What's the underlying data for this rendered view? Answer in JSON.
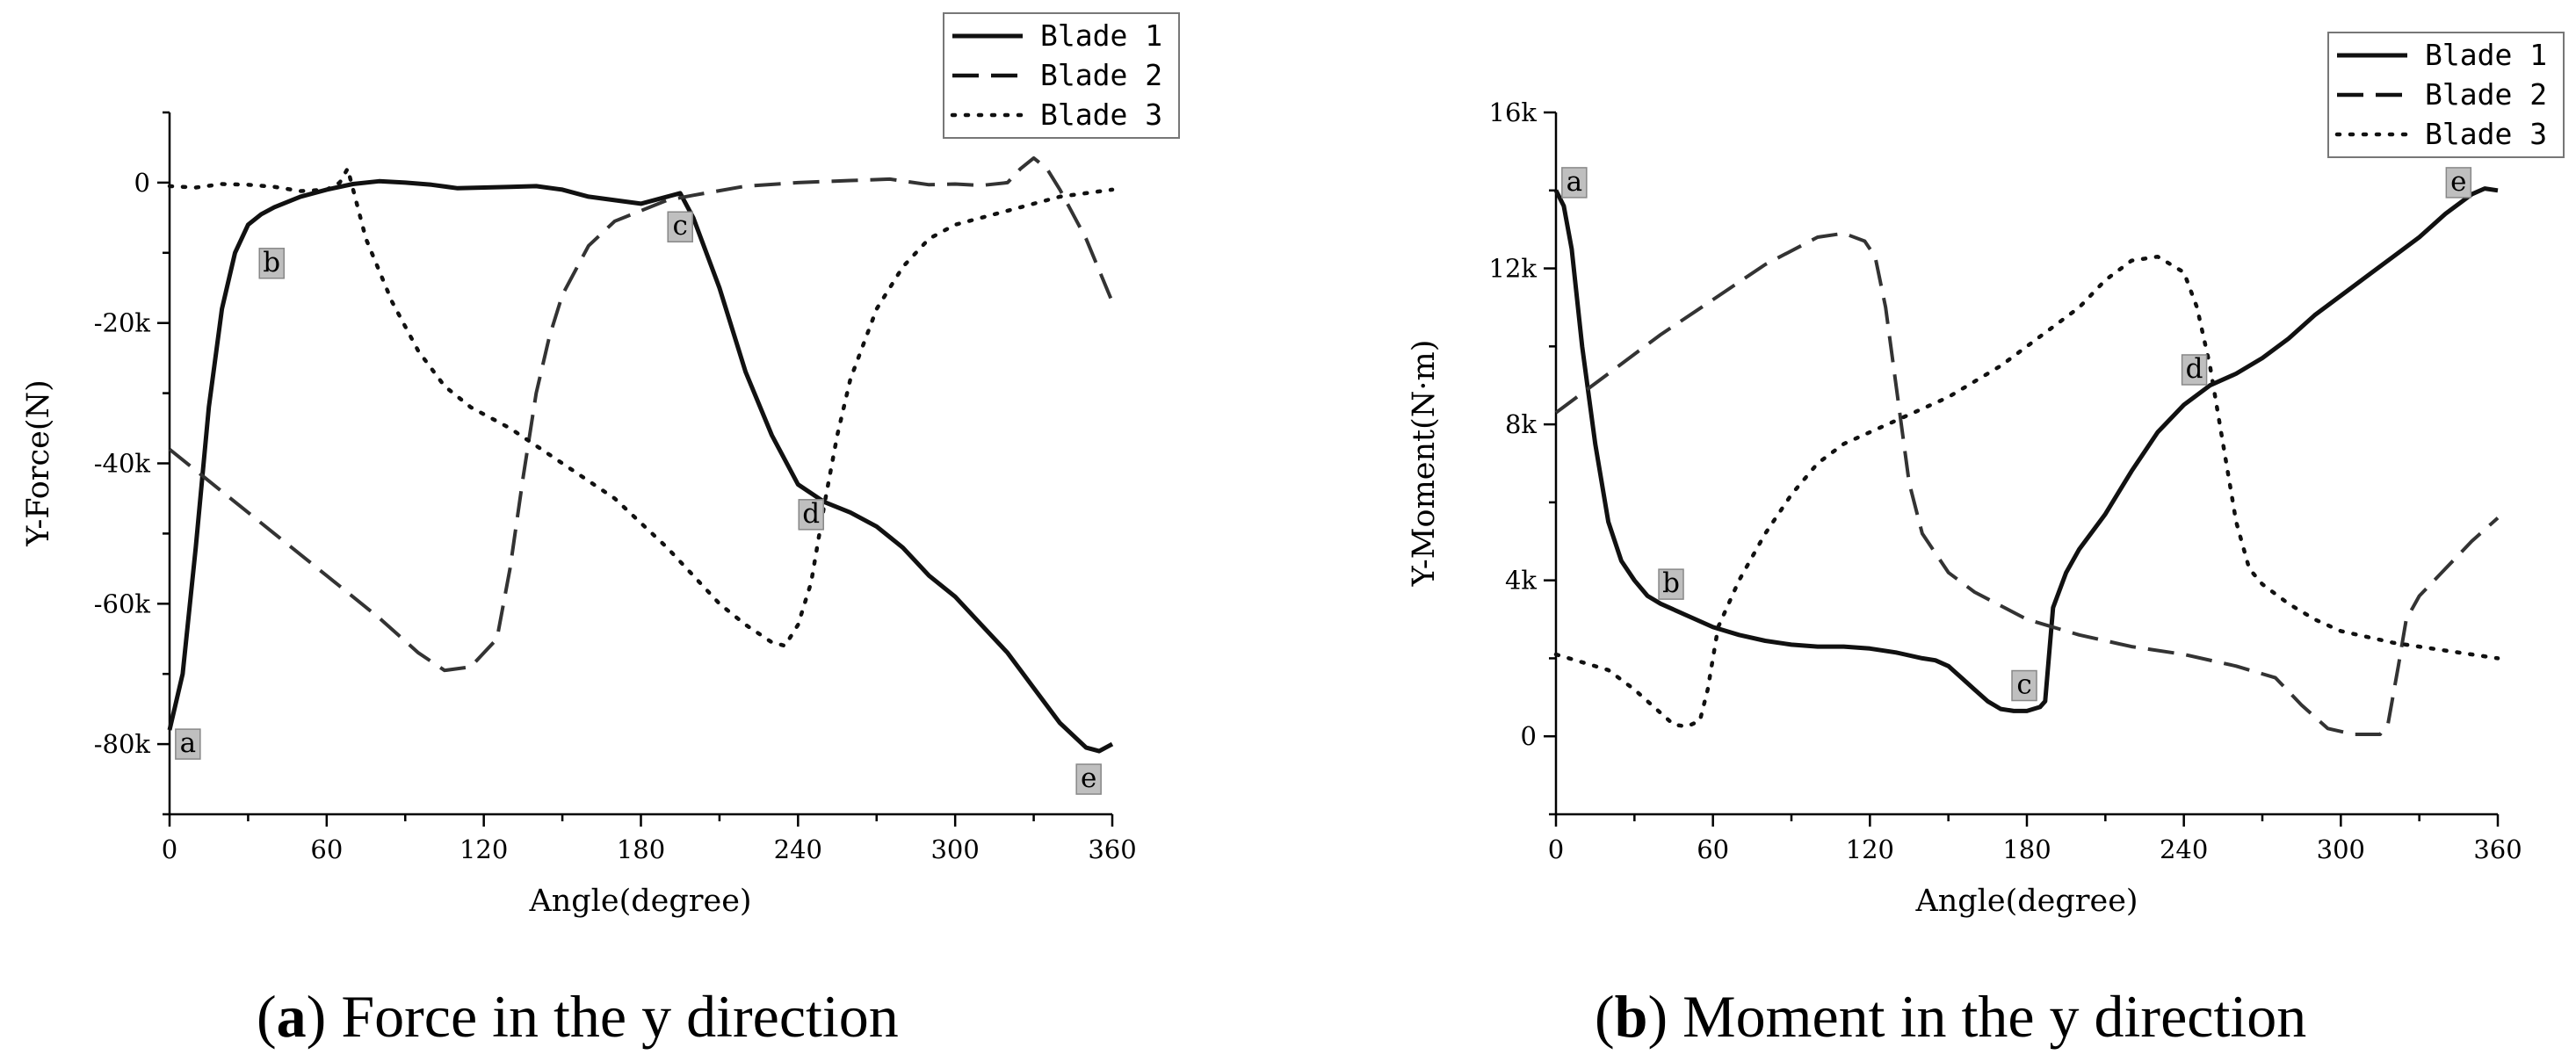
{
  "chart_data": [
    {
      "type": "line",
      "id": "a",
      "xlabel": "Angle(degree)",
      "ylabel": "Y-Force(N)",
      "xlim": [
        0,
        360
      ],
      "ylim": [
        -90000,
        10000
      ],
      "xticks": [
        0,
        60,
        120,
        180,
        240,
        300,
        360
      ],
      "xtick_labels": [
        "0",
        "60",
        "120",
        "180",
        "240",
        "300",
        "360"
      ],
      "yticks": [
        -80000,
        -60000,
        -40000,
        -20000,
        0
      ],
      "ytick_labels": [
        "-80k",
        "-60k",
        "-40k",
        "-20k",
        "0"
      ],
      "legend_position": "top-right",
      "caption_label": "a",
      "caption_text": "Force in the y direction",
      "series": [
        {
          "name": "Blade 1",
          "style": "solid",
          "x": [
            0,
            5,
            10,
            15,
            20,
            25,
            30,
            35,
            40,
            50,
            60,
            70,
            80,
            90,
            100,
            110,
            120,
            130,
            140,
            150,
            160,
            170,
            180,
            190,
            195,
            200,
            210,
            220,
            230,
            240,
            250,
            260,
            270,
            280,
            290,
            300,
            310,
            320,
            330,
            340,
            350,
            355,
            360
          ],
          "y": [
            -78000,
            -70000,
            -52000,
            -32000,
            -18000,
            -10000,
            -6000,
            -4500,
            -3500,
            -2000,
            -1000,
            -200,
            200,
            0,
            -300,
            -800,
            -700,
            -600,
            -500,
            -1000,
            -2000,
            -2500,
            -3000,
            -2000,
            -1500,
            -5000,
            -15000,
            -27000,
            -36000,
            -43000,
            -45500,
            -47000,
            -49000,
            -52000,
            -56000,
            -59000,
            -63000,
            -67000,
            -72000,
            -77000,
            -80500,
            -81000,
            -80000
          ]
        },
        {
          "name": "Blade 2",
          "style": "dashed",
          "x": [
            0,
            20,
            40,
            60,
            80,
            95,
            105,
            115,
            125,
            130,
            135,
            140,
            145,
            150,
            160,
            170,
            180,
            190,
            200,
            220,
            240,
            260,
            275,
            290,
            300,
            310,
            320,
            325,
            330,
            335,
            340,
            350,
            360
          ],
          "y": [
            -38000,
            -44000,
            -50000,
            -56000,
            -62000,
            -67000,
            -69500,
            -69000,
            -65000,
            -55000,
            -42000,
            -30000,
            -22000,
            -16000,
            -9000,
            -5500,
            -4000,
            -2500,
            -1800,
            -500,
            0,
            300,
            500,
            -300,
            -200,
            -400,
            0,
            2000,
            3500,
            2000,
            -1000,
            -8000,
            -17000
          ]
        },
        {
          "name": "Blade 3",
          "style": "dotted",
          "x": [
            0,
            10,
            20,
            30,
            40,
            50,
            60,
            65,
            68,
            75,
            85,
            95,
            105,
            115,
            130,
            150,
            170,
            190,
            200,
            210,
            220,
            230,
            235,
            240,
            245,
            250,
            255,
            260,
            270,
            280,
            290,
            300,
            320,
            340,
            360
          ],
          "y": [
            -500,
            -700,
            -200,
            -300,
            -600,
            -1200,
            -1000,
            0,
            2000,
            -8000,
            -17000,
            -24000,
            -29000,
            -32000,
            -35000,
            -40000,
            -45000,
            -52000,
            -56000,
            -60000,
            -63000,
            -65500,
            -66000,
            -63000,
            -57000,
            -46000,
            -36000,
            -28000,
            -18000,
            -12000,
            -8000,
            -6000,
            -4000,
            -2000,
            -1000
          ]
        }
      ],
      "annotations": [
        {
          "label": "a",
          "x": 7,
          "y": -80000
        },
        {
          "label": "b",
          "x": 39,
          "y": -11500
        },
        {
          "label": "c",
          "x": 195,
          "y": -6300
        },
        {
          "label": "d",
          "x": 245,
          "y": -47300
        },
        {
          "label": "e",
          "x": 351,
          "y": -85000
        }
      ]
    },
    {
      "type": "line",
      "id": "b",
      "xlabel": "Angle(degree)",
      "ylabel": "Y-Moment(N·m)",
      "xlim": [
        0,
        360
      ],
      "ylim": [
        -2000,
        16000
      ],
      "xticks": [
        0,
        60,
        120,
        180,
        240,
        300,
        360
      ],
      "xtick_labels": [
        "0",
        "60",
        "120",
        "180",
        "240",
        "300",
        "360"
      ],
      "yticks": [
        0,
        4000,
        8000,
        12000,
        16000
      ],
      "ytick_labels": [
        "0",
        "4k",
        "8k",
        "12k",
        "16k"
      ],
      "legend_position": "top-right",
      "caption_label": "b",
      "caption_text": "Moment in the y direction",
      "series": [
        {
          "name": "Blade 1",
          "style": "solid",
          "x": [
            0,
            3,
            6,
            10,
            15,
            20,
            25,
            30,
            35,
            40,
            50,
            60,
            70,
            80,
            90,
            100,
            110,
            120,
            130,
            140,
            145,
            150,
            155,
            160,
            165,
            170,
            175,
            180,
            185,
            187,
            190,
            195,
            200,
            210,
            220,
            230,
            240,
            250,
            260,
            270,
            280,
            290,
            300,
            310,
            320,
            330,
            340,
            350,
            355,
            360
          ],
          "y": [
            14000,
            13600,
            12500,
            10000,
            7500,
            5500,
            4500,
            4000,
            3600,
            3400,
            3100,
            2800,
            2600,
            2450,
            2350,
            2300,
            2300,
            2250,
            2150,
            2000,
            1950,
            1800,
            1500,
            1200,
            900,
            700,
            650,
            650,
            750,
            900,
            3300,
            4200,
            4800,
            5700,
            6800,
            7800,
            8500,
            9000,
            9300,
            9700,
            10200,
            10800,
            11300,
            11800,
            12300,
            12800,
            13400,
            13900,
            14050,
            14000
          ]
        },
        {
          "name": "Blade 2",
          "style": "dashed",
          "x": [
            0,
            20,
            40,
            60,
            80,
            100,
            110,
            118,
            122,
            126,
            130,
            135,
            140,
            150,
            160,
            180,
            200,
            220,
            240,
            260,
            275,
            285,
            295,
            305,
            315,
            318,
            322,
            325,
            330,
            340,
            350,
            360
          ],
          "y": [
            8300,
            9300,
            10300,
            11200,
            12100,
            12800,
            12900,
            12700,
            12300,
            11000,
            9000,
            6500,
            5200,
            4200,
            3700,
            3000,
            2600,
            2300,
            2100,
            1800,
            1500,
            800,
            200,
            50,
            50,
            300,
            1800,
            3000,
            3600,
            4300,
            5000,
            5600
          ]
        },
        {
          "name": "Blade 3",
          "style": "dotted",
          "x": [
            0,
            10,
            20,
            30,
            40,
            45,
            50,
            55,
            58,
            62,
            70,
            80,
            90,
            100,
            110,
            120,
            130,
            140,
            150,
            160,
            170,
            180,
            190,
            200,
            210,
            220,
            230,
            240,
            245,
            250,
            255,
            260,
            265,
            270,
            280,
            290,
            300,
            320,
            340,
            360
          ],
          "y": [
            2100,
            1900,
            1700,
            1200,
            600,
            300,
            250,
            400,
            1200,
            2800,
            4000,
            5200,
            6200,
            7000,
            7500,
            7800,
            8100,
            8400,
            8700,
            9100,
            9500,
            10000,
            10500,
            11000,
            11700,
            12200,
            12300,
            11900,
            11000,
            9500,
            7500,
            5500,
            4300,
            3900,
            3400,
            3000,
            2700,
            2400,
            2200,
            2000
          ]
        }
      ],
      "annotations": [
        {
          "label": "a",
          "x": 7,
          "y": 14200
        },
        {
          "label": "b",
          "x": 44,
          "y": 3900
        },
        {
          "label": "c",
          "x": 179,
          "y": 1300
        },
        {
          "label": "d",
          "x": 244,
          "y": 9400
        },
        {
          "label": "e",
          "x": 345,
          "y": 14200
        }
      ]
    }
  ]
}
